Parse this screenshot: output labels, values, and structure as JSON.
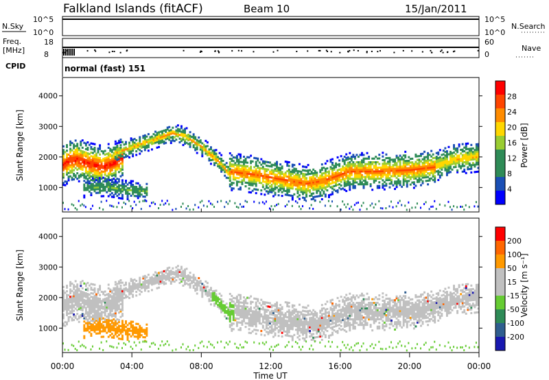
{
  "header": {
    "title": "Falkland Islands (fitACF)",
    "beam": "Beam 10",
    "date": "15/Jan/2011"
  },
  "top_panels": {
    "nsky_label": "N.Sky",
    "nsky_ticks": [
      "10^5",
      "10^0"
    ],
    "nsearch_label": "N.Search",
    "freq_label_line1": "Freq.",
    "freq_label_line2": "[MHz]",
    "freq_ticks": [
      "18",
      "8"
    ],
    "nave_ticks": [
      "60",
      "0"
    ],
    "nave_label": "Nave",
    "cpid_label": "CPID",
    "cpid_text": "normal (fast) 151"
  },
  "colors": {
    "power": [
      "#0000ff",
      "#1a4fb5",
      "#2e8b57",
      "#2e8b57",
      "#9acd32",
      "#ffd700",
      "#ff8c00",
      "#ff4500",
      "#ff0000"
    ],
    "velocity": [
      "#1818b0",
      "#2f5e8f",
      "#2e8b57",
      "#66cc33",
      "#c0c0c0",
      "#c0c0c0",
      "#ff9900",
      "#ff6600",
      "#ff0000"
    ]
  },
  "chart_data": [
    {
      "type": "heatmap",
      "title": "Power",
      "ylabel": "Slant Range [km]",
      "xlabel": "",
      "y_ticks": [
        "4000",
        "3000",
        "2000",
        "1000"
      ],
      "y_tick_values": [
        4000,
        3000,
        2000,
        1000
      ],
      "ylim": [
        200,
        4600
      ],
      "colorbar": {
        "label": "Power [dB]",
        "ticks": [
          "28",
          "24",
          "20",
          "16",
          "12",
          "8",
          "4"
        ],
        "range": [
          0,
          32
        ]
      },
      "bands": [
        {
          "t": [
            0.0,
            0.3,
            0.8,
            1.5,
            2.3,
            3.0,
            3.5
          ],
          "center": [
            1700,
            1850,
            1900,
            1750,
            1650,
            1800,
            2000
          ],
          "width": 700,
          "max_power": 28
        },
        {
          "t": [
            3.0,
            4.5,
            5.5,
            6.3,
            7.0,
            8.0,
            9.0,
            9.6
          ],
          "center": [
            2100,
            2400,
            2600,
            2750,
            2650,
            2300,
            1800,
            1400
          ],
          "width": 300,
          "max_power": 20
        },
        {
          "t": [
            9.5,
            11.0,
            12.5,
            14.0,
            15.0,
            16.5,
            18.0,
            20.0,
            21.5
          ],
          "center": [
            1500,
            1400,
            1250,
            1100,
            1200,
            1500,
            1500,
            1550,
            1650
          ],
          "width": 600,
          "max_power": 24
        },
        {
          "t": [
            21.5,
            22.5,
            24.0
          ],
          "center": [
            1700,
            1900,
            2000
          ],
          "width": 500,
          "max_power": 20
        },
        {
          "t": [
            1.2,
            2.5,
            3.5,
            4.8
          ],
          "center": [
            950,
            1000,
            900,
            850
          ],
          "width": 300,
          "max_power": 12
        }
      ]
    },
    {
      "type": "heatmap",
      "title": "Velocity",
      "ylabel": "Slant Range [km]",
      "xlabel": "Time UT",
      "y_ticks": [
        "4000",
        "3000",
        "2000",
        "1000"
      ],
      "y_tick_values": [
        4000,
        3000,
        2000,
        1000
      ],
      "ylim": [
        200,
        4600
      ],
      "colorbar": {
        "label": "Velocity [m s⁻¹]",
        "ticks": [
          "200",
          "100",
          "50",
          "15",
          "-15",
          "-50",
          "-100",
          "-200"
        ],
        "range": [
          -250,
          250
        ]
      },
      "x_ticks": [
        "00:00",
        "04:00",
        "08:00",
        "12:00",
        "16:00",
        "20:00",
        "00:00"
      ],
      "x_tick_values": [
        0,
        4,
        8,
        12,
        16,
        20,
        24
      ],
      "xlim": [
        0,
        24
      ]
    }
  ]
}
